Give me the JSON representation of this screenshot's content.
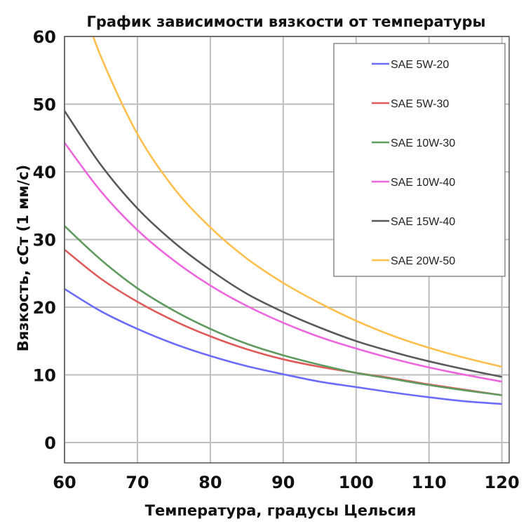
{
  "chart_data": {
    "type": "line",
    "title": "График зависимости вязкости от температуры",
    "xlabel": "Температура, градусы Цельсия",
    "ylabel": "Вязкость, сСт (1 мм/с)",
    "xlim": [
      60,
      121
    ],
    "ylim": [
      -3,
      60
    ],
    "x_ticks": [
      "60",
      "70",
      "80",
      "90",
      "100",
      "110",
      "120"
    ],
    "y_ticks": [
      "0",
      "10",
      "20",
      "30",
      "40",
      "50",
      "60"
    ],
    "grid": true,
    "legend_position": "top-right",
    "x": [
      60,
      65,
      70,
      75,
      80,
      85,
      90,
      95,
      100,
      105,
      110,
      115,
      120
    ],
    "series": [
      {
        "name": "SAE 5W-20",
        "color": "#6b6bff",
        "values": [
          22.7,
          19.4,
          16.8,
          14.6,
          12.8,
          11.3,
          10.1,
          9.0,
          8.2,
          7.4,
          6.7,
          6.1,
          5.7
        ]
      },
      {
        "name": "SAE 5W-30",
        "color": "#e05a5a",
        "values": [
          28.5,
          24.2,
          20.8,
          18.0,
          15.7,
          13.8,
          12.3,
          11.2,
          10.3,
          9.5,
          8.6,
          7.8,
          7.0
        ]
      },
      {
        "name": "SAE 10W-30",
        "color": "#5f9a5f",
        "values": [
          32.0,
          27.0,
          22.8,
          19.5,
          16.8,
          14.6,
          12.9,
          11.5,
          10.3,
          9.4,
          8.5,
          7.7,
          7.0
        ]
      },
      {
        "name": "SAE 10W-40",
        "color": "#ee66dd",
        "values": [
          44.3,
          37.1,
          31.4,
          26.9,
          23.2,
          20.2,
          17.7,
          15.6,
          13.9,
          12.4,
          11.1,
          10.0,
          9.0
        ]
      },
      {
        "name": "SAE 15W-40",
        "color": "#595959",
        "values": [
          49.0,
          41.0,
          34.6,
          29.6,
          25.5,
          22.0,
          19.3,
          17.0,
          15.0,
          13.4,
          12.0,
          10.8,
          9.7
        ]
      },
      {
        "name": "SAE 20W-50",
        "color": "#ffbf4d",
        "values": [
          null,
          57.0,
          45.6,
          37.6,
          31.8,
          27.2,
          23.6,
          20.6,
          18.0,
          15.8,
          14.0,
          12.5,
          11.2
        ]
      }
    ]
  }
}
